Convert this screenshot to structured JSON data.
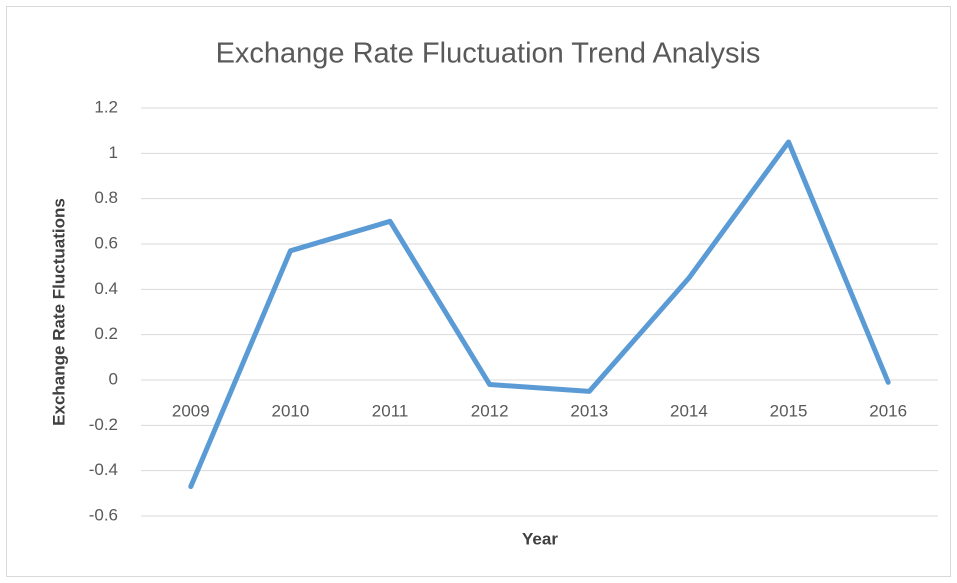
{
  "chart_data": {
    "type": "line",
    "title": "Exchange Rate Fluctuation Trend Analysis",
    "x_label": "Year",
    "y_label": "Exchange Rate Fluctuations",
    "categories": [
      "2009",
      "2010",
      "2011",
      "2012",
      "2013",
      "2014",
      "2015",
      "2016"
    ],
    "series": [
      {
        "name": "Exchange Rate Fluctuations",
        "color": "#5b9bd5",
        "values": [
          -0.47,
          0.57,
          0.7,
          -0.02,
          -0.05,
          0.45,
          1.05,
          -0.01
        ]
      }
    ],
    "ylim": [
      -0.6,
      1.2
    ],
    "yticks": [
      -0.6,
      -0.4,
      -0.2,
      0,
      0.2,
      0.4,
      0.6,
      0.8,
      1,
      1.2
    ],
    "grid": true,
    "legend": false
  }
}
